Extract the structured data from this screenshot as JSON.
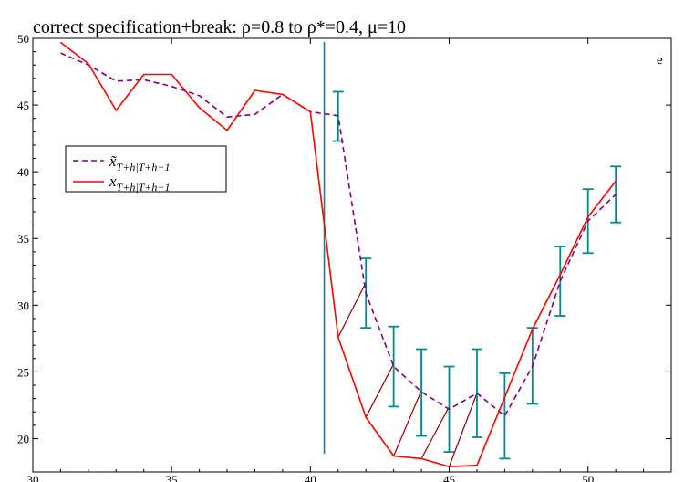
{
  "chart_data": {
    "type": "line",
    "title": "correct specification+break: ρ=0.8 to ρ*=0.4,  μ=10",
    "corner_label": "e",
    "xlabel": "",
    "ylabel": "",
    "xlim": [
      30,
      53
    ],
    "ylim": [
      17.5,
      50
    ],
    "x_ticks": [
      30,
      35,
      40,
      45,
      50
    ],
    "y_ticks": [
      20,
      25,
      30,
      35,
      40,
      45,
      50
    ],
    "x_tick_labels": [
      "30",
      "35",
      "40",
      "45",
      "50"
    ],
    "y_tick_labels": [
      "20",
      "25",
      "30",
      "35",
      "40",
      "45",
      "50"
    ],
    "break_point": 40.5,
    "legend": {
      "position": "left",
      "entries": [
        {
          "symbol": "x̃",
          "subscript": "T+h|T+h−1",
          "series": "forecast"
        },
        {
          "symbol": "x",
          "subscript": "T+h|T+h−1",
          "series": "actual"
        }
      ]
    },
    "series": [
      {
        "id": "forecast",
        "style": "dashed",
        "color": "#800080",
        "x": [
          31,
          32,
          33,
          34,
          35,
          36,
          37,
          38,
          39,
          40,
          41,
          42,
          43,
          44,
          45,
          46,
          47,
          48,
          49,
          50,
          51
        ],
        "y": [
          48.9,
          48.0,
          46.8,
          46.9,
          46.4,
          45.7,
          44.1,
          44.3,
          45.8,
          44.5,
          44.2,
          30.9,
          25.4,
          23.5,
          22.2,
          23.4,
          21.7,
          25.4,
          31.8,
          36.3,
          38.3
        ]
      },
      {
        "id": "actual",
        "style": "solid",
        "color": "#ff0000",
        "x": [
          31,
          32,
          33,
          34,
          35,
          36,
          37,
          38,
          39,
          40,
          41,
          42,
          43,
          44,
          45,
          46,
          47,
          48,
          49,
          50,
          51
        ],
        "y": [
          49.7,
          48.1,
          44.6,
          47.3,
          47.3,
          44.8,
          43.1,
          46.1,
          45.8,
          44.5,
          27.6,
          21.6,
          18.7,
          18.5,
          17.9,
          18.0,
          23.1,
          28.2,
          32.3,
          36.6,
          39.3
        ]
      }
    ],
    "error_bars": {
      "color": "#008b8b",
      "x": [
        41,
        42,
        43,
        44,
        45,
        46,
        47,
        48,
        49,
        50,
        51
      ],
      "low": [
        42.3,
        28.3,
        22.4,
        20.2,
        19.0,
        20.1,
        18.5,
        22.6,
        29.2,
        33.9,
        36.2
      ],
      "high": [
        46.0,
        33.5,
        28.4,
        26.7,
        25.4,
        26.7,
        24.9,
        28.3,
        34.4,
        38.7,
        40.4
      ]
    },
    "connectors": {
      "color": "#8b0000",
      "from_x": [
        41,
        42,
        43,
        44,
        45
      ],
      "from_y": [
        27.6,
        21.6,
        18.7,
        18.5,
        17.9
      ],
      "to_x": [
        42,
        43,
        44,
        45,
        46
      ],
      "to_y": [
        31.7,
        25.6,
        23.6,
        22.4,
        23.4
      ]
    },
    "colors": {
      "break_line": "#008b8b",
      "axis": "#000000"
    }
  }
}
